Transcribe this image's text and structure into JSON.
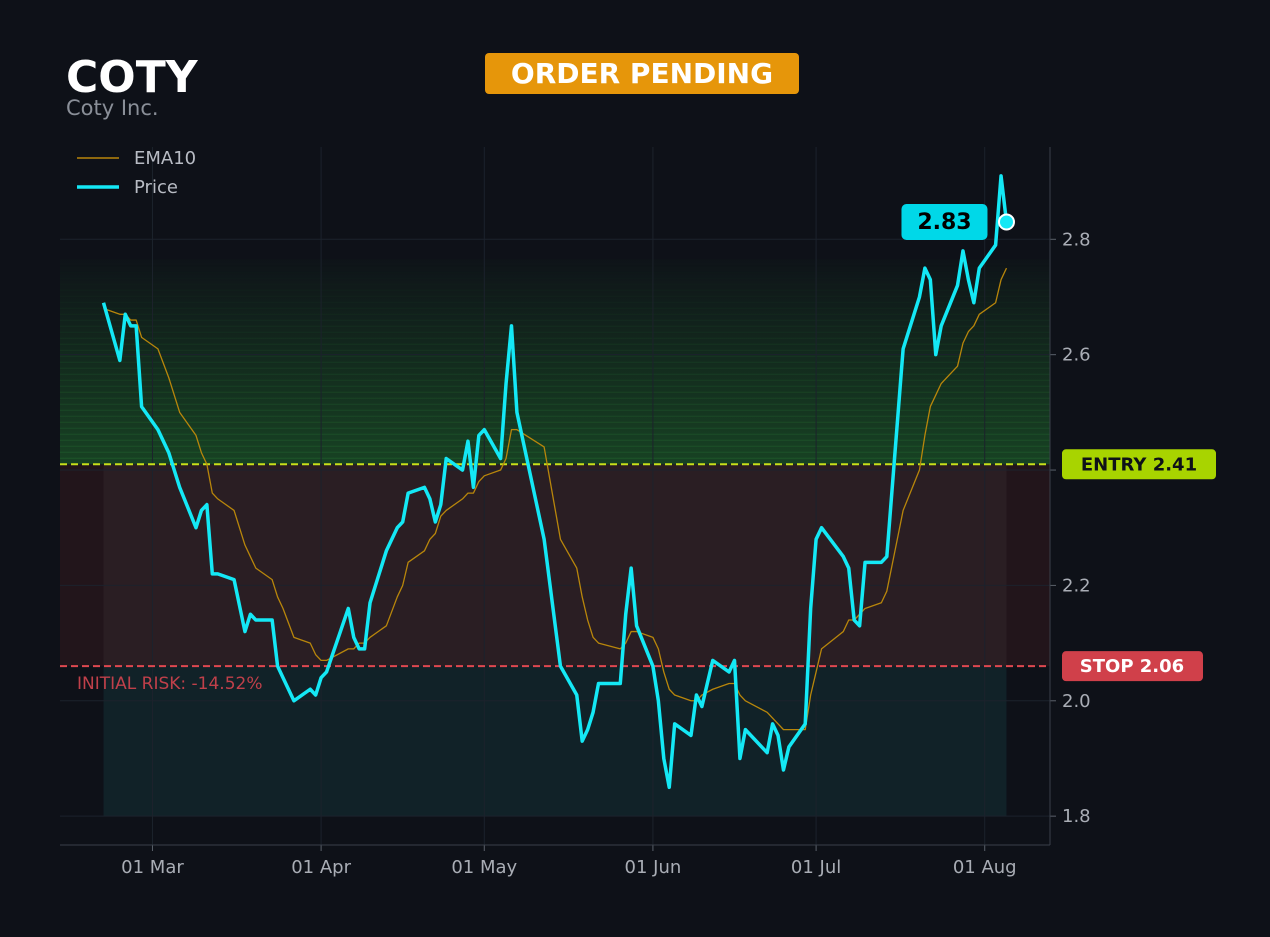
{
  "chart_data": {
    "type": "line",
    "title": "COTY",
    "subtitle": "Coty Inc.",
    "status": "ORDER PENDING",
    "x": [
      "20 Feb",
      "23 Feb",
      "24 Feb",
      "25 Feb",
      "26 Feb",
      "27 Feb",
      "02 Mar",
      "04 Mar",
      "06 Mar",
      "09 Mar",
      "10 Mar",
      "11 Mar",
      "12 Mar",
      "13 Mar",
      "16 Mar",
      "18 Mar",
      "19 Mar",
      "20 Mar",
      "23 Mar",
      "24 Mar",
      "25 Mar",
      "27 Mar",
      "30 Mar",
      "31 Mar",
      "01 Apr",
      "02 Apr",
      "06 Apr",
      "07 Apr",
      "08 Apr",
      "09 Apr",
      "10 Apr",
      "13 Apr",
      "15 Apr",
      "16 Apr",
      "17 Apr",
      "20 Apr",
      "21 Apr",
      "22 Apr",
      "23 Apr",
      "24 Apr",
      "27 Apr",
      "28 Apr",
      "29 Apr",
      "30 Apr",
      "01 May",
      "04 May",
      "05 May",
      "06 May",
      "07 May",
      "12 May",
      "15 May",
      "18 May",
      "19 May",
      "20 May",
      "21 May",
      "22 May",
      "26 May",
      "27 May",
      "28 May",
      "29 May",
      "01 Jun",
      "02 Jun",
      "03 Jun",
      "04 Jun",
      "05 Jun",
      "08 Jun",
      "09 Jun",
      "10 Jun",
      "12 Jun",
      "15 Jun",
      "16 Jun",
      "17 Jun",
      "18 Jun",
      "22 Jun",
      "23 Jun",
      "24 Jun",
      "25 Jun",
      "26 Jun",
      "29 Jun",
      "30 Jun",
      "01 Jul",
      "02 Jul",
      "06 Jul",
      "07 Jul",
      "08 Jul",
      "09 Jul",
      "10 Jul",
      "13 Jul",
      "14 Jul",
      "17 Jul",
      "20 Jul",
      "21 Jul",
      "22 Jul",
      "23 Jul",
      "24 Jul",
      "27 Jul",
      "28 Jul",
      "29 Jul",
      "30 Jul",
      "31 Jul",
      "03 Aug",
      "04 Aug",
      "05 Aug"
    ],
    "series": [
      {
        "name": "EMA10",
        "color": "#b8860b",
        "values": [
          2.68,
          2.67,
          2.67,
          2.66,
          2.66,
          2.63,
          2.61,
          2.56,
          2.5,
          2.46,
          2.43,
          2.41,
          2.36,
          2.35,
          2.33,
          2.27,
          2.25,
          2.23,
          2.21,
          2.18,
          2.16,
          2.11,
          2.1,
          2.08,
          2.07,
          2.07,
          2.09,
          2.09,
          2.1,
          2.1,
          2.11,
          2.13,
          2.18,
          2.2,
          2.24,
          2.26,
          2.28,
          2.29,
          2.32,
          2.33,
          2.35,
          2.36,
          2.36,
          2.38,
          2.39,
          2.4,
          2.42,
          2.47,
          2.47,
          2.44,
          2.28,
          2.23,
          2.18,
          2.14,
          2.11,
          2.1,
          2.09,
          2.1,
          2.12,
          2.12,
          2.11,
          2.09,
          2.05,
          2.02,
          2.01,
          2.0,
          2.0,
          2.01,
          2.02,
          2.03,
          2.03,
          2.01,
          2.0,
          1.98,
          1.97,
          1.96,
          1.95,
          1.95,
          1.95,
          2.01,
          2.05,
          2.09,
          2.12,
          2.14,
          2.14,
          2.15,
          2.16,
          2.17,
          2.19,
          2.33,
          2.4,
          2.46,
          2.51,
          2.53,
          2.55,
          2.58,
          2.62,
          2.64,
          2.65,
          2.67,
          2.69,
          2.73,
          2.75
        ]
      },
      {
        "name": "Price",
        "color": "#14e8f5",
        "values": [
          2.69,
          2.59,
          2.67,
          2.65,
          2.65,
          2.51,
          2.47,
          2.43,
          2.37,
          2.3,
          2.33,
          2.34,
          2.22,
          2.22,
          2.21,
          2.12,
          2.15,
          2.14,
          2.14,
          2.06,
          2.04,
          2.0,
          2.02,
          2.01,
          2.04,
          2.05,
          2.16,
          2.11,
          2.09,
          2.09,
          2.17,
          2.26,
          2.3,
          2.31,
          2.36,
          2.37,
          2.35,
          2.31,
          2.34,
          2.42,
          2.4,
          2.45,
          2.37,
          2.46,
          2.47,
          2.42,
          2.55,
          2.65,
          2.5,
          2.28,
          2.06,
          2.01,
          1.93,
          1.95,
          1.98,
          2.03,
          2.03,
          2.15,
          2.23,
          2.13,
          2.06,
          2.0,
          1.9,
          1.85,
          1.96,
          1.94,
          2.01,
          1.99,
          2.07,
          2.05,
          2.07,
          1.9,
          1.95,
          1.91,
          1.96,
          1.94,
          1.88,
          1.92,
          1.96,
          2.16,
          2.28,
          2.3,
          2.25,
          2.23,
          2.14,
          2.13,
          2.24,
          2.24,
          2.25,
          2.61,
          2.7,
          2.75,
          2.73,
          2.6,
          2.65,
          2.72,
          2.78,
          2.73,
          2.69,
          2.75,
          2.79,
          2.91,
          2.83
        ]
      }
    ],
    "entry": {
      "value": 2.41,
      "label": "ENTRY 2.41",
      "color": "#c8e01a"
    },
    "stop": {
      "value": 2.06,
      "label": "STOP 2.06",
      "color": "#e04850"
    },
    "risk_note": "INITIAL RISK: -14.52%",
    "xlim": [
      "12 Feb",
      "13 Aug"
    ],
    "xticks": [
      "01 Mar",
      "01 Apr",
      "01 May",
      "01 Jun",
      "01 Jul",
      "01 Aug"
    ],
    "ylim": [
      1.75,
      2.96
    ],
    "yticks": [
      1.8,
      {
        "value": 2,
        "label": "2.0"
      },
      2.2,
      2.4,
      2.6,
      2.8
    ],
    "grid": true,
    "legend": "upper left"
  }
}
